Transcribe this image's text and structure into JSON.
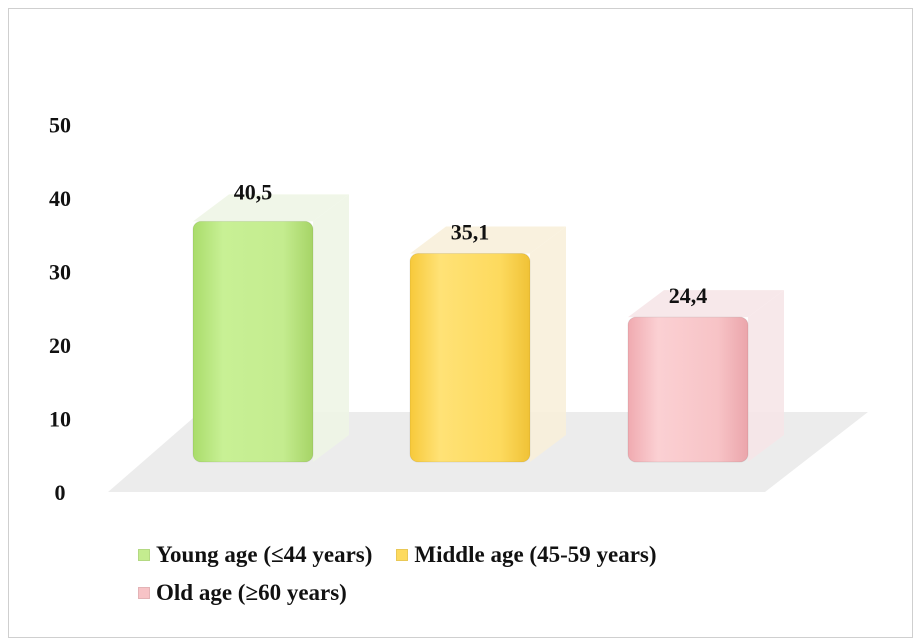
{
  "chart_data": {
    "type": "bar",
    "categories": [
      "Young age (≤44 years)",
      "Middle age (45-59 years)",
      "Old age (≥60 years)"
    ],
    "values": [
      40.5,
      35.1,
      24.4
    ],
    "value_labels": [
      "40,5",
      "35,1",
      "24,4"
    ],
    "colors": [
      "#c4ec8f",
      "#fdda5e",
      "#f7c3c6"
    ],
    "ylim": [
      0,
      50
    ],
    "yticks": [
      "0",
      "10",
      "20",
      "30",
      "40",
      "50"
    ],
    "legend_position": "bottom",
    "grid": false,
    "style": "3d"
  }
}
